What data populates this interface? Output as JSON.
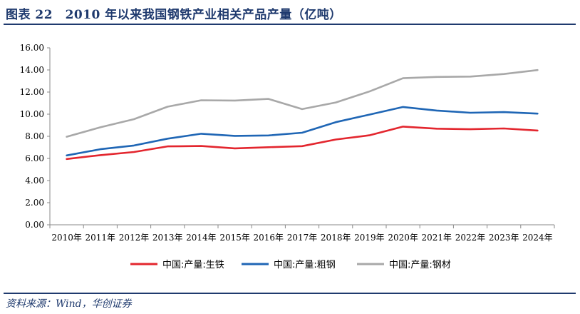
{
  "figure_title": "图表 22　2010 年以来我国钢铁产业相关产品产量（亿吨）",
  "source": "资料来源：Wind，华创证券",
  "chart_data": {
    "type": "line",
    "title": "",
    "xlabel": "",
    "ylabel": "",
    "categories": [
      "2010年",
      "2011年",
      "2012年",
      "2013年",
      "2014年",
      "2015年",
      "2016年",
      "2017年",
      "2018年",
      "2019年",
      "2020年",
      "2021年",
      "2022年",
      "2023年",
      "2024年"
    ],
    "ylim": [
      0,
      16
    ],
    "yticks": [
      "0.00",
      "2.00",
      "4.00",
      "6.00",
      "8.00",
      "10.00",
      "12.00",
      "14.00",
      "16.00"
    ],
    "grid": false,
    "legend_position": "bottom",
    "series": [
      {
        "name": "中国:产量:生铁",
        "color": "#e3262e",
        "values": [
          5.95,
          6.3,
          6.58,
          7.09,
          7.12,
          6.91,
          7.01,
          7.11,
          7.71,
          8.09,
          8.88,
          8.69,
          8.64,
          8.71,
          8.52
        ]
      },
      {
        "name": "中国:产量:粗钢",
        "color": "#1f66b5",
        "values": [
          6.27,
          6.83,
          7.17,
          7.79,
          8.23,
          8.04,
          8.08,
          8.32,
          9.28,
          9.96,
          10.65,
          10.33,
          10.13,
          10.19,
          10.05
        ]
      },
      {
        "name": "中国:产量:钢材",
        "color": "#a8a8a8",
        "values": [
          7.96,
          8.81,
          9.55,
          10.68,
          11.26,
          11.23,
          11.38,
          10.46,
          11.06,
          12.05,
          13.25,
          13.37,
          13.4,
          13.63,
          13.99
        ]
      }
    ]
  }
}
